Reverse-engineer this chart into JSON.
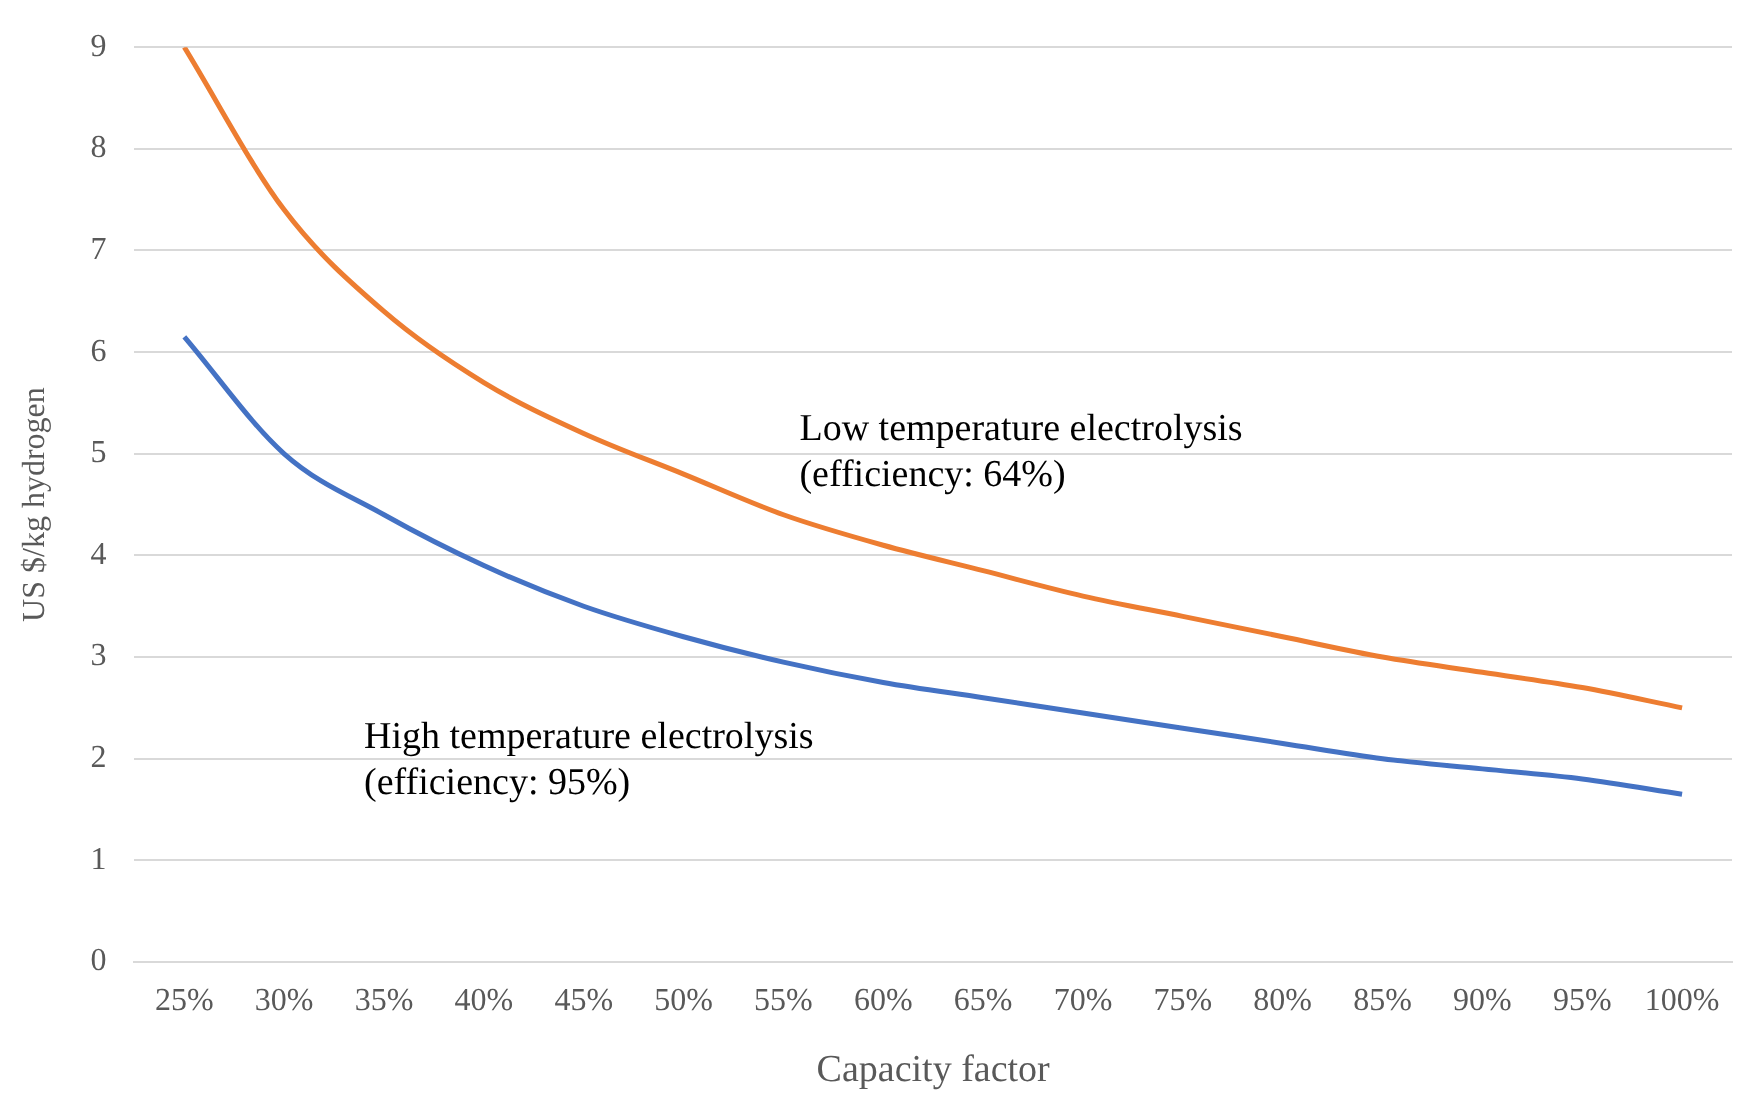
{
  "chart_data": {
    "type": "line",
    "xlabel": "Capacity factor",
    "ylabel": "US $/kg hydrogen",
    "categories": [
      "25%",
      "30%",
      "35%",
      "40%",
      "45%",
      "50%",
      "55%",
      "60%",
      "65%",
      "70%",
      "75%",
      "80%",
      "85%",
      "90%",
      "95%",
      "100%"
    ],
    "series": [
      {
        "name": "Low temperature electrolysis\n(efficiency: 64%)",
        "color": "#ed7d31",
        "values": [
          9.0,
          7.4,
          6.4,
          5.7,
          5.2,
          4.8,
          4.4,
          4.1,
          3.85,
          3.6,
          3.4,
          3.2,
          3.0,
          2.85,
          2.7,
          2.5
        ]
      },
      {
        "name": "High temperature electrolysis\n(efficiency: 95%)",
        "color": "#4472c4",
        "values": [
          6.15,
          5.0,
          4.4,
          3.9,
          3.5,
          3.2,
          2.95,
          2.75,
          2.6,
          2.45,
          2.3,
          2.15,
          2.0,
          1.9,
          1.8,
          1.65
        ]
      }
    ],
    "ylim": [
      0,
      9
    ],
    "yticks": [
      0,
      1,
      2,
      3,
      4,
      5,
      6,
      7,
      8,
      9
    ],
    "grid": "y",
    "legend": false,
    "marker": "none",
    "line_style": "solid"
  }
}
